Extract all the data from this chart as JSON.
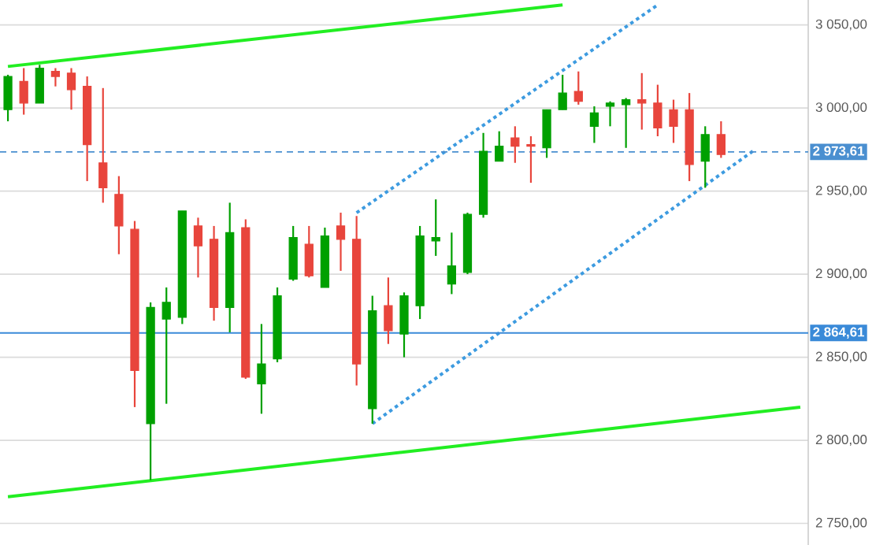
{
  "chart_data": {
    "type": "candlestick",
    "categories": [
      null,
      null,
      null,
      null,
      null,
      null,
      null,
      null,
      null,
      null,
      null,
      null,
      null,
      null,
      null,
      null,
      null,
      null,
      null,
      null,
      null,
      null,
      null,
      null,
      null,
      null,
      null,
      null,
      null,
      null,
      null,
      null,
      null,
      null,
      null,
      null,
      null,
      null,
      null,
      null,
      null,
      null,
      null,
      null,
      null,
      null,
      null,
      null,
      null,
      null,
      null
    ],
    "ohlc": [
      [
        2999,
        3020,
        2992,
        3019
      ],
      [
        3016,
        3024,
        2996,
        3003
      ],
      [
        3003,
        3026,
        3003,
        3024
      ],
      [
        3022,
        3024,
        3013,
        3019
      ],
      [
        3021,
        3024,
        2999,
        3011
      ],
      [
        3013,
        3019,
        2956,
        2978
      ],
      [
        2967,
        3012,
        2943,
        2952
      ],
      [
        2948,
        2959,
        2912,
        2929
      ],
      [
        2927,
        2932,
        2820,
        2842
      ],
      [
        2810,
        2883,
        2776,
        2880
      ],
      [
        2873,
        2892,
        2822,
        2883
      ],
      [
        2874,
        2938,
        2870,
        2938
      ],
      [
        2929,
        2934,
        2898,
        2917
      ],
      [
        2921,
        2929,
        2872,
        2880
      ],
      [
        2880,
        2943,
        2865,
        2925
      ],
      [
        2928,
        2933,
        2837,
        2838
      ],
      [
        2834,
        2870,
        2816,
        2846
      ],
      [
        2849,
        2892,
        2847,
        2887
      ],
      [
        2897,
        2929,
        2896,
        2922
      ],
      [
        2918,
        2929,
        2898,
        2899
      ],
      [
        2892,
        2928,
        2892,
        2923
      ],
      [
        2929,
        2937,
        2902,
        2921
      ],
      [
        2921,
        2935,
        2833,
        2846
      ],
      [
        2819,
        2887,
        2810,
        2878
      ],
      [
        2881,
        2898,
        2858,
        2866
      ],
      [
        2864,
        2889,
        2850,
        2887
      ],
      [
        2881,
        2929,
        2873,
        2923
      ],
      [
        2920,
        2945,
        2911,
        2922
      ],
      [
        2894,
        2925,
        2888,
        2905
      ],
      [
        2901,
        2937,
        2900,
        2936
      ],
      [
        2936,
        2985,
        2934,
        2974
      ],
      [
        2968,
        2986,
        2968,
        2977
      ],
      [
        2982,
        2989,
        2967,
        2977
      ],
      [
        2978,
        2983,
        2955,
        2977
      ],
      [
        2976,
        2999,
        2970,
        2999
      ],
      [
        2999,
        3020,
        2999,
        3009
      ],
      [
        3010,
        3022,
        3002,
        3004
      ],
      [
        2989,
        3001,
        2979,
        2997
      ],
      [
        3001,
        3004,
        2989,
        3003
      ],
      [
        3002,
        3006,
        2976,
        3005
      ],
      [
        3005,
        3021,
        2987,
        3003
      ],
      [
        3003,
        3014,
        2983,
        2988
      ],
      [
        2999,
        3005,
        2979,
        2989
      ],
      [
        2999,
        3009,
        2956,
        2966
      ],
      [
        2968,
        2989,
        2952,
        2984
      ],
      [
        2984,
        2992,
        2970,
        2972
      ],
      null,
      null,
      null,
      null,
      null
    ],
    "colors": [
      "#00a000",
      "#e8453c",
      "#00a000",
      "#e8453c",
      "#e8453c",
      "#e8453c",
      "#e8453c",
      "#e8453c",
      "#e8453c",
      "#00a000",
      "#00a000",
      "#00a000",
      "#e8453c",
      "#e8453c",
      "#00a000",
      "#e8453c",
      "#00a000",
      "#00a000",
      "#00a000",
      "#e8453c",
      "#00a000",
      "#e8453c",
      "#e8453c",
      "#00a000",
      "#e8453c",
      "#00a000",
      "#00a000",
      "#00a000",
      "#00a000",
      "#00a000",
      "#00a000",
      "#00a000",
      "#e8453c",
      "#e8453c",
      "#00a000",
      "#00a000",
      "#e8453c",
      "#00a000",
      "#00a000",
      "#00a000",
      "#e8453c",
      "#e8453c",
      "#e8453c",
      "#e8453c",
      "#00a000",
      "#e8453c",
      null,
      null,
      null,
      null,
      null
    ],
    "series": [
      {
        "type": "line",
        "values": [
          3025,
          null,
          null,
          null,
          null,
          null,
          null,
          null,
          null,
          null,
          null,
          null,
          null,
          null,
          null,
          null,
          null,
          null,
          null,
          null,
          null,
          null,
          null,
          null,
          null,
          null,
          null,
          null,
          null,
          null,
          null,
          null,
          null,
          null,
          null,
          3062,
          null,
          null,
          null,
          null,
          null,
          null,
          null,
          null,
          null,
          null,
          null,
          null,
          null,
          null,
          null
        ],
        "color": "#22ee22",
        "line_style": "solid"
      },
      {
        "type": "line",
        "values": [
          2766,
          null,
          null,
          null,
          null,
          null,
          null,
          null,
          null,
          null,
          null,
          null,
          null,
          null,
          null,
          null,
          null,
          null,
          null,
          null,
          null,
          null,
          null,
          null,
          null,
          null,
          null,
          null,
          null,
          null,
          null,
          null,
          null,
          null,
          null,
          null,
          null,
          null,
          null,
          null,
          null,
          null,
          null,
          null,
          null,
          null,
          null,
          null,
          null,
          null,
          2820
        ],
        "color": "#22ee22",
        "line_style": "solid"
      },
      {
        "type": "line",
        "values": [
          null,
          null,
          null,
          null,
          null,
          null,
          null,
          null,
          null,
          null,
          null,
          null,
          null,
          null,
          null,
          null,
          null,
          null,
          null,
          null,
          null,
          null,
          2937,
          null,
          null,
          null,
          null,
          null,
          null,
          null,
          null,
          null,
          null,
          null,
          null,
          null,
          null,
          null,
          null,
          null,
          null,
          3062,
          null,
          null,
          null,
          null,
          null,
          null,
          null,
          null,
          null
        ],
        "color": "#3d9be0",
        "line_style": "dotted"
      },
      {
        "type": "line",
        "values": [
          null,
          null,
          null,
          null,
          null,
          null,
          null,
          null,
          null,
          null,
          null,
          null,
          null,
          null,
          null,
          null,
          null,
          null,
          null,
          null,
          null,
          null,
          null,
          2810,
          null,
          null,
          null,
          null,
          null,
          null,
          null,
          null,
          null,
          null,
          null,
          null,
          null,
          null,
          null,
          null,
          null,
          null,
          null,
          null,
          null,
          null,
          null,
          2974,
          null,
          null,
          null
        ],
        "color": "#3d9be0",
        "line_style": "dotted"
      }
    ],
    "ref_lines": [
      {
        "axis": "y",
        "value": 2973.61,
        "label": "2 973,61",
        "color": "#4a8fd0",
        "line_style": "dashed"
      },
      {
        "axis": "y",
        "value": 2864.61,
        "label": "2 864,61",
        "color": "#3a8ad8",
        "line_style": "solid"
      }
    ],
    "ylim": [
      2737,
      3065
    ],
    "yticks": [
      {
        "value": 2750,
        "label": "2 750,00"
      },
      {
        "value": 2800,
        "label": "2 800,00"
      },
      {
        "value": 2850,
        "label": "2 850,00"
      },
      {
        "value": 2900,
        "label": "2 900,00"
      },
      {
        "value": 2950,
        "label": "2 950,00"
      },
      {
        "value": 3000,
        "label": "3 000,00"
      },
      {
        "value": 3050,
        "label": "3 050,00"
      }
    ],
    "tick_labels": "y",
    "grid": "y"
  }
}
